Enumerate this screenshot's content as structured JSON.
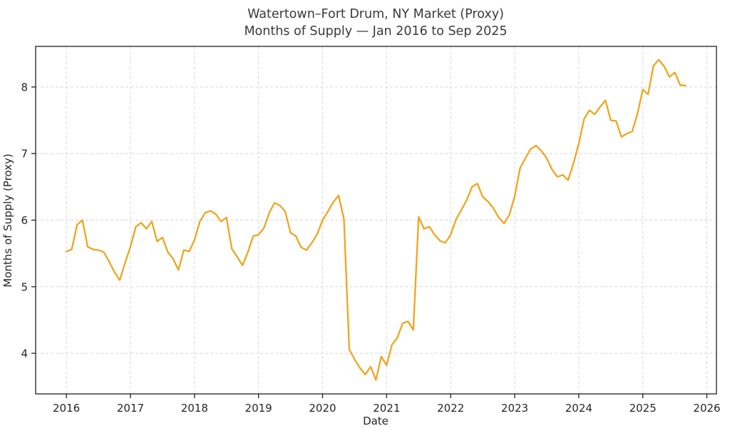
{
  "chart_data": {
    "type": "line",
    "title_line1": "Watertown–Fort Drum, NY Market (Proxy)",
    "title_line2": "Months of Supply — Jan 2016 to Sep 2025",
    "xlabel": "Date",
    "ylabel": "Months of Supply (Proxy)",
    "x_tick_labels": [
      "2016",
      "2017",
      "2018",
      "2019",
      "2020",
      "2021",
      "2022",
      "2023",
      "2024",
      "2025",
      "2026"
    ],
    "x_tick_years": [
      2016,
      2017,
      2018,
      2019,
      2020,
      2021,
      2022,
      2023,
      2024,
      2025,
      2026
    ],
    "y_ticks": [
      4,
      5,
      6,
      7,
      8
    ],
    "xlim_years": [
      2015.52,
      2026.15
    ],
    "ylim": [
      3.39,
      8.61
    ],
    "grid": true,
    "grid_style": "dashed",
    "legend_position": "none",
    "line_color": "#F0A51E",
    "background_color": "#ffffff",
    "spine_color": "#1f1f1f",
    "grid_color": "#d7d7d7",
    "series": [
      {
        "name": "Months of Supply (Proxy)",
        "start_year": 2016,
        "start_month": 1,
        "frequency": "monthly",
        "values": [
          5.53,
          5.56,
          5.93,
          6.0,
          5.6,
          5.56,
          5.55,
          5.52,
          5.38,
          5.22,
          5.1,
          5.36,
          5.6,
          5.9,
          5.96,
          5.87,
          5.98,
          5.68,
          5.74,
          5.52,
          5.42,
          5.25,
          5.55,
          5.53,
          5.7,
          5.98,
          6.11,
          6.14,
          6.09,
          5.98,
          6.04,
          5.57,
          5.45,
          5.32,
          5.52,
          5.76,
          5.78,
          5.88,
          6.11,
          6.26,
          6.22,
          6.13,
          5.81,
          5.76,
          5.59,
          5.55,
          5.66,
          5.79,
          6.0,
          6.13,
          6.27,
          6.37,
          6.02,
          4.06,
          3.91,
          3.78,
          3.68,
          3.8,
          3.6,
          3.95,
          3.82,
          4.13,
          4.23,
          4.45,
          4.48,
          4.35,
          6.05,
          5.87,
          5.9,
          5.78,
          5.69,
          5.66,
          5.78,
          6.01,
          6.15,
          6.3,
          6.5,
          6.55,
          6.35,
          6.28,
          6.18,
          6.04,
          5.95,
          6.08,
          6.36,
          6.78,
          6.93,
          7.07,
          7.12,
          7.04,
          6.93,
          6.76,
          6.65,
          6.68,
          6.6,
          6.85,
          7.15,
          7.52,
          7.65,
          7.59,
          7.7,
          7.8,
          7.5,
          7.49,
          7.25,
          7.3,
          7.33,
          7.6,
          7.96,
          7.89,
          8.32,
          8.41,
          8.31,
          8.15,
          8.22,
          8.03,
          8.02
        ]
      }
    ]
  }
}
